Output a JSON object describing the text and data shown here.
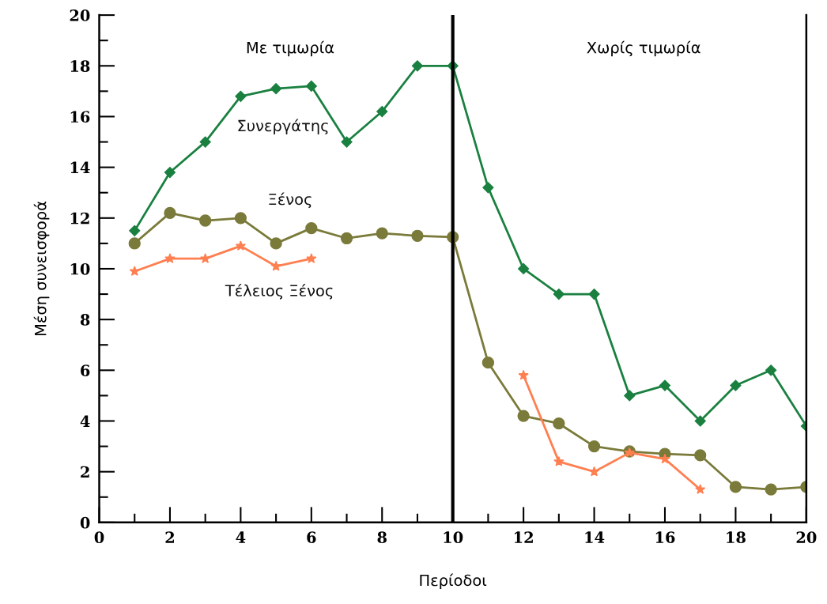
{
  "chart_data": {
    "type": "line",
    "xlabel": "Περίοδοι",
    "ylabel": "Μέση συνεισφορά",
    "x": [
      1,
      2,
      3,
      4,
      5,
      6,
      7,
      8,
      9,
      10,
      11,
      12,
      13,
      14,
      15,
      16,
      17,
      18,
      19,
      20
    ],
    "series": [
      {
        "name": "Συνεργάτης",
        "color": "#1a8040",
        "marker": "diamond",
        "values": [
          11.5,
          13.8,
          15,
          16.8,
          17.1,
          17.2,
          15,
          16.2,
          18,
          18,
          13.2,
          10,
          9,
          9,
          5,
          5.4,
          4,
          5.4,
          6,
          3.8
        ]
      },
      {
        "name": "Ξένος",
        "color": "#7a7a3a",
        "marker": "circle",
        "values": [
          11,
          12.2,
          11.9,
          12,
          11,
          11.6,
          11.2,
          11.4,
          11.3,
          11.25,
          6.3,
          4.2,
          3.9,
          3.0,
          2.8,
          2.7,
          2.65,
          1.4,
          1.3,
          1.4
        ]
      },
      {
        "name": "Τέλειος Ξένος",
        "color": "#ff7f50",
        "marker": "star",
        "values": [
          9.9,
          10.4,
          10.4,
          10.9,
          10.1,
          10.4,
          null,
          null,
          null,
          null,
          null,
          5.8,
          2.4,
          2.0,
          2.75,
          2.5,
          1.3,
          null,
          null,
          null
        ]
      }
    ],
    "xlim": [
      0,
      20
    ],
    "ylim": [
      0,
      20
    ],
    "xticks": [
      0,
      {
        "value": 1,
        "label": null
      },
      2,
      {
        "value": 3,
        "label": null
      },
      4,
      {
        "value": 5,
        "label": null
      },
      6,
      {
        "value": 7,
        "label": null
      },
      8,
      {
        "value": 9,
        "label": null
      },
      10,
      {
        "value": 11,
        "label": null
      },
      12,
      {
        "value": 13,
        "label": null
      },
      14,
      {
        "value": 15,
        "label": null
      },
      16,
      {
        "value": 17,
        "label": null
      },
      18,
      {
        "value": 19,
        "label": null
      },
      20
    ],
    "yticks": [
      0,
      {
        "value": 1,
        "label": null
      },
      2,
      {
        "value": 3,
        "label": null
      },
      4,
      {
        "value": 5,
        "label": null
      },
      6,
      {
        "value": 7,
        "label": null
      },
      8,
      {
        "value": 9,
        "label": null
      },
      10,
      {
        "value": 11,
        "label": null
      },
      12,
      {
        "value": 13,
        "label": null
      },
      14,
      {
        "value": 15,
        "label": null
      },
      16,
      {
        "value": 17,
        "label": null
      },
      18,
      {
        "value": 19,
        "label": null
      },
      20
    ],
    "ref_lines": [
      {
        "axis": "x",
        "value": 10,
        "color": "#000000"
      }
    ],
    "annotations": [
      "Με τιμωρία",
      "Χωρίς τιμωρία"
    ],
    "grid": false,
    "legend": false,
    "line_style": "solid"
  }
}
